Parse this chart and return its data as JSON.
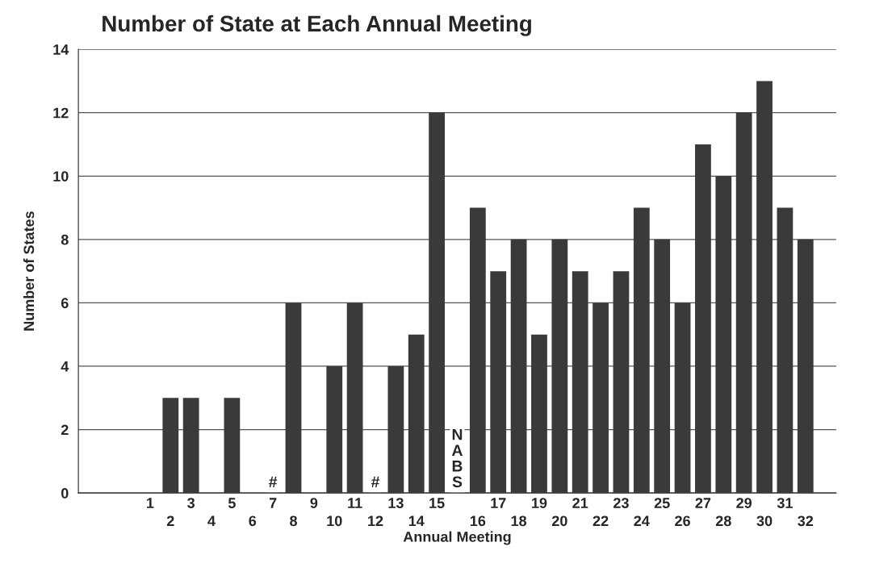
{
  "chart_data": {
    "type": "bar",
    "title": "Number of State at Each Annual Meeting",
    "xlabel": "Annual Meeting",
    "ylabel": "Number of States",
    "categories": [
      "1",
      "2",
      "3",
      "4",
      "5",
      "6",
      "7",
      "8",
      "9",
      "10",
      "11",
      "12",
      "13",
      "14",
      "15",
      null,
      "16",
      "17",
      "18",
      "19",
      "20",
      "21",
      "22",
      "23",
      "24",
      "25",
      "26",
      "27",
      "28",
      "29",
      "30",
      "31",
      "32"
    ],
    "values": [
      0,
      3,
      3,
      0,
      3,
      0,
      null,
      6,
      0,
      4,
      6,
      null,
      4,
      5,
      12,
      null,
      9,
      7,
      8,
      5,
      8,
      7,
      6,
      7,
      9,
      8,
      6,
      11,
      10,
      12,
      13,
      9,
      8
    ],
    "color": "#3a3a3a",
    "ylim": [
      0,
      14
    ],
    "yticks": [
      0,
      2,
      4,
      6,
      8,
      10,
      12,
      14
    ],
    "grid": "y",
    "annotations": [
      "#",
      "#",
      "NABS"
    ]
  }
}
